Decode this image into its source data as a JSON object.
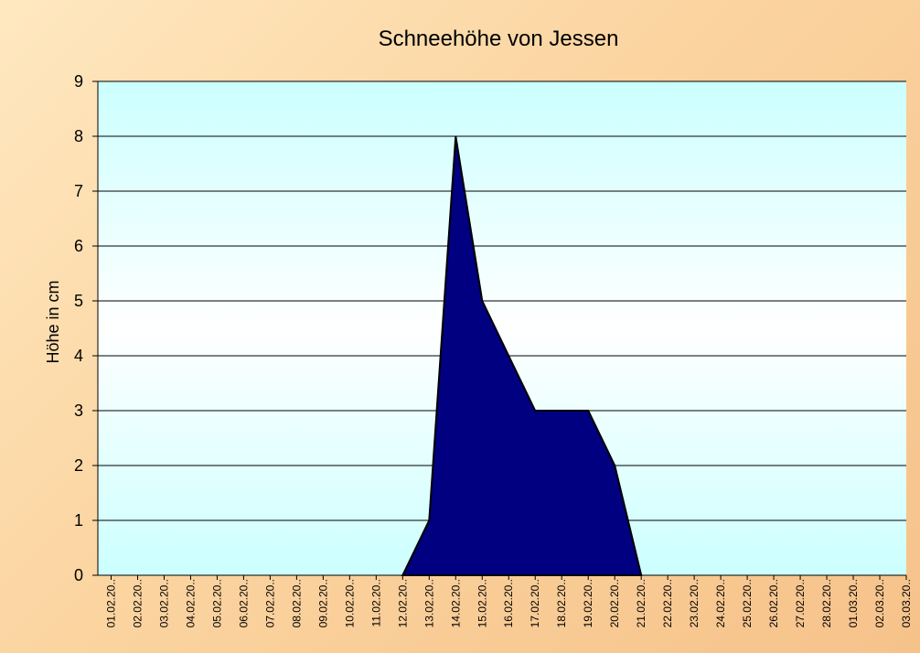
{
  "chart_data": {
    "type": "area",
    "title": "Schneehöhe von Jessen",
    "xlabel": "",
    "ylabel": "Höhe in cm",
    "ylim": [
      0,
      9
    ],
    "yticks": [
      0,
      1,
      2,
      3,
      4,
      5,
      6,
      7,
      8,
      9
    ],
    "grid": true,
    "legend": "none",
    "categories": [
      "01.02.20..",
      "02.02.20..",
      "03.02.20..",
      "04.02.20..",
      "05.02.20..",
      "06.02.20..",
      "07.02.20..",
      "08.02.20..",
      "09.02.20..",
      "10.02.20..",
      "11.02.20..",
      "12.02.20..",
      "13.02.20..",
      "14.02.20..",
      "15.02.20..",
      "16.02.20..",
      "17.02.20..",
      "18.02.20..",
      "19.02.20..",
      "20.02.20..",
      "21.02.20..",
      "22.02.20..",
      "23.02.20..",
      "24.02.20..",
      "25.02.20..",
      "26.02.20..",
      "27.02.20..",
      "28.02.20..",
      "01.03.20..",
      "02.03.20..",
      "03.03.20.."
    ],
    "series": [
      {
        "values": [
          null,
          null,
          null,
          null,
          null,
          null,
          null,
          null,
          null,
          null,
          null,
          0,
          1,
          8,
          5,
          4,
          3,
          3,
          3,
          2,
          0,
          null,
          null,
          null,
          null,
          null,
          null,
          null,
          null,
          null,
          null
        ]
      }
    ],
    "colors": {
      "fill": "#000080",
      "outline": "#000000",
      "plot_background_top": "#ccffff",
      "plot_background_mid": "#ffffff",
      "plot_background_bottom": "#ccffff",
      "gridline": "#000000"
    }
  }
}
